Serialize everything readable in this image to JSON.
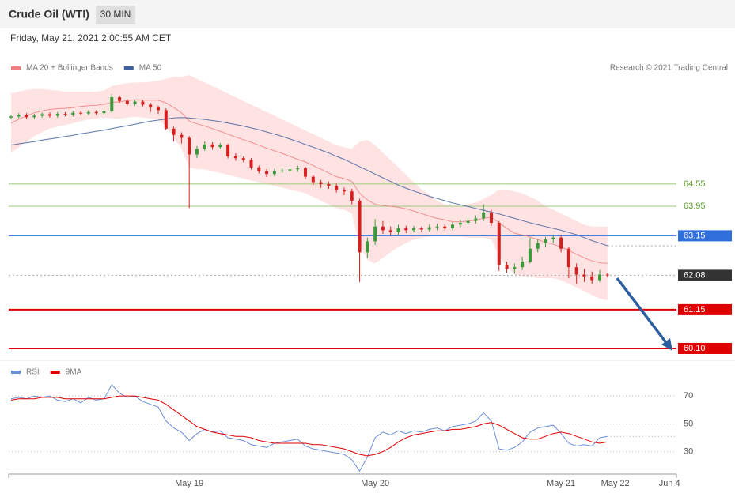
{
  "header": {
    "title": "Crude Oil (WTI)",
    "timeframe": "30 MIN",
    "datetime": "Friday, May 21, 2021 2:00:55 AM CET",
    "copyright": "Research © 2021 Trading Central"
  },
  "chart_data": [
    {
      "type": "candlestick",
      "ylim": [
        59.8,
        67.5
      ],
      "candles": {
        "open": [
          66.35,
          66.38,
          66.42,
          66.36,
          66.4,
          66.44,
          66.4,
          66.45,
          66.43,
          66.48,
          66.46,
          66.5,
          66.47,
          66.52,
          66.9,
          66.8,
          66.72,
          66.78,
          66.7,
          66.62,
          66.55,
          66.05,
          65.88,
          65.8,
          65.35,
          65.5,
          65.62,
          65.55,
          65.6,
          65.3,
          65.25,
          65.2,
          65.0,
          64.9,
          64.82,
          64.9,
          64.92,
          64.95,
          64.98,
          64.75,
          64.6,
          64.55,
          64.5,
          64.4,
          64.35,
          64.1,
          62.7,
          63.0,
          63.4,
          63.3,
          63.25,
          63.35,
          63.3,
          63.35,
          63.32,
          63.38,
          63.4,
          63.35,
          63.45,
          63.5,
          63.55,
          63.62,
          63.78,
          63.5,
          62.35,
          62.25,
          62.3,
          62.45,
          62.8,
          62.95,
          63.05,
          63.1,
          62.8,
          62.3,
          62.1,
          62.05,
          61.95,
          62.1,
          null,
          null,
          null,
          null,
          null,
          null,
          null,
          null
        ],
        "high": [
          66.43,
          66.47,
          66.47,
          66.45,
          66.49,
          66.49,
          66.5,
          66.5,
          66.53,
          66.53,
          66.55,
          66.55,
          66.57,
          66.98,
          66.95,
          66.85,
          66.83,
          66.83,
          66.75,
          66.67,
          66.6,
          66.1,
          65.95,
          65.85,
          65.58,
          65.7,
          65.68,
          65.66,
          65.64,
          65.38,
          65.3,
          65.25,
          65.05,
          64.96,
          64.96,
          64.98,
          65.0,
          65.05,
          65.02,
          64.8,
          64.66,
          64.62,
          64.56,
          64.46,
          64.42,
          64.15,
          63.1,
          63.6,
          63.55,
          63.4,
          63.45,
          63.42,
          63.42,
          63.4,
          63.45,
          63.48,
          63.47,
          63.52,
          63.58,
          63.62,
          63.7,
          64.0,
          63.85,
          63.55,
          62.45,
          62.4,
          62.58,
          63.1,
          63.05,
          63.12,
          63.15,
          63.15,
          62.85,
          62.4,
          62.25,
          62.18,
          62.22,
          62.14,
          null,
          null,
          null,
          null,
          null,
          null,
          null,
          null
        ],
        "low": [
          66.3,
          66.33,
          66.31,
          66.31,
          66.35,
          66.35,
          66.35,
          66.38,
          66.38,
          66.41,
          66.41,
          66.42,
          66.42,
          66.47,
          66.75,
          66.67,
          66.67,
          66.65,
          66.5,
          66.45,
          66.0,
          65.7,
          65.65,
          63.9,
          65.25,
          65.45,
          65.48,
          65.5,
          65.24,
          65.18,
          65.14,
          64.94,
          64.84,
          64.74,
          64.76,
          64.85,
          64.87,
          64.88,
          64.68,
          64.52,
          64.45,
          64.42,
          64.32,
          64.25,
          64.0,
          61.9,
          62.55,
          62.9,
          63.2,
          63.15,
          63.18,
          63.22,
          63.24,
          63.25,
          63.26,
          63.3,
          63.28,
          63.3,
          63.38,
          63.44,
          63.48,
          63.55,
          63.42,
          62.2,
          62.15,
          62.12,
          62.22,
          62.4,
          62.7,
          62.85,
          62.95,
          62.7,
          62.0,
          61.85,
          61.9,
          61.85,
          61.9,
          62.02,
          null,
          null,
          null,
          null,
          null,
          null,
          null,
          null
        ],
        "close": [
          66.38,
          66.42,
          66.36,
          66.4,
          66.44,
          66.4,
          66.45,
          66.43,
          66.48,
          66.46,
          66.5,
          66.47,
          66.52,
          66.9,
          66.8,
          66.72,
          66.78,
          66.7,
          66.62,
          66.55,
          66.05,
          65.88,
          65.8,
          65.35,
          65.5,
          65.62,
          65.55,
          65.6,
          65.3,
          65.25,
          65.2,
          65.0,
          64.9,
          64.82,
          64.9,
          64.92,
          64.95,
          64.98,
          64.75,
          64.6,
          64.55,
          64.5,
          64.4,
          64.35,
          64.1,
          62.7,
          63.0,
          63.4,
          63.3,
          63.25,
          63.35,
          63.3,
          63.35,
          63.32,
          63.38,
          63.4,
          63.35,
          63.45,
          63.5,
          63.55,
          63.62,
          63.78,
          63.5,
          62.35,
          62.25,
          62.3,
          62.45,
          62.8,
          62.95,
          63.05,
          63.1,
          62.8,
          62.3,
          62.1,
          62.05,
          61.95,
          62.1,
          62.08,
          null,
          null,
          null,
          null,
          null,
          null,
          null,
          null
        ],
        "up_color": "#3a9a3a",
        "down_color": "#d62020"
      },
      "bollinger": {
        "color": "#ffd9d9",
        "upper": [
          67.0,
          67.05,
          67.1,
          67.12,
          67.12,
          67.1,
          67.08,
          67.05,
          67.05,
          67.05,
          67.05,
          67.05,
          67.08,
          67.2,
          67.25,
          67.28,
          67.3,
          67.3,
          67.32,
          67.35,
          67.4,
          67.45,
          67.45,
          67.5,
          67.4,
          67.3,
          67.2,
          67.1,
          67.0,
          66.9,
          66.8,
          66.7,
          66.6,
          66.5,
          66.4,
          66.3,
          66.2,
          66.1,
          66.0,
          65.9,
          65.8,
          65.7,
          65.6,
          65.55,
          65.5,
          65.7,
          65.75,
          65.6,
          65.4,
          65.2,
          65.0,
          64.8,
          64.6,
          64.4,
          64.25,
          64.1,
          64.0,
          63.95,
          63.95,
          64.0,
          64.05,
          64.15,
          64.25,
          64.4,
          64.4,
          64.35,
          64.3,
          64.2,
          64.1,
          63.95,
          63.85,
          63.75,
          63.65,
          63.55,
          63.45,
          63.4,
          63.4,
          63.4,
          null,
          null,
          null,
          null,
          null,
          null,
          null,
          null
        ],
        "lower": [
          65.4,
          65.55,
          65.7,
          65.85,
          65.95,
          66.05,
          66.1,
          66.15,
          66.2,
          66.25,
          66.3,
          66.32,
          66.35,
          66.33,
          66.32,
          66.35,
          66.37,
          66.35,
          66.33,
          66.3,
          66.1,
          65.8,
          65.5,
          65.0,
          64.95,
          64.95,
          64.9,
          64.85,
          64.8,
          64.75,
          64.7,
          64.65,
          64.6,
          64.55,
          64.5,
          64.45,
          64.4,
          64.35,
          64.3,
          64.2,
          64.1,
          64.0,
          63.9,
          63.85,
          63.75,
          62.9,
          62.5,
          62.4,
          62.55,
          62.7,
          62.85,
          62.95,
          63.05,
          63.1,
          63.12,
          63.15,
          63.15,
          63.12,
          63.12,
          63.1,
          63.1,
          63.1,
          63.05,
          62.6,
          62.3,
          62.1,
          62.05,
          62.05,
          62.0,
          62.0,
          62.0,
          61.95,
          61.85,
          61.75,
          61.65,
          61.55,
          61.45,
          61.4,
          null,
          null,
          null,
          null,
          null,
          null,
          null,
          null
        ]
      },
      "series": [
        {
          "name": "MA 20 + Bollinger Bands",
          "color": "#f08080",
          "values": [
            66.2,
            66.3,
            66.4,
            66.48,
            66.53,
            66.57,
            66.59,
            66.6,
            66.62,
            66.65,
            66.67,
            66.68,
            66.71,
            66.76,
            66.78,
            66.81,
            66.83,
            66.82,
            66.82,
            66.82,
            66.75,
            66.62,
            66.48,
            66.25,
            66.18,
            66.12,
            66.05,
            65.98,
            65.9,
            65.82,
            65.75,
            65.68,
            65.6,
            65.52,
            65.45,
            65.38,
            65.3,
            65.22,
            65.15,
            65.05,
            64.95,
            64.85,
            64.75,
            64.7,
            64.62,
            64.3,
            64.12,
            64.0,
            63.97,
            63.95,
            63.92,
            63.88,
            63.82,
            63.75,
            63.68,
            63.62,
            63.58,
            63.53,
            63.53,
            63.55,
            63.57,
            63.62,
            63.65,
            63.5,
            63.35,
            63.22,
            63.17,
            63.12,
            63.05,
            62.97,
            62.92,
            62.85,
            62.75,
            62.65,
            62.55,
            62.47,
            62.42,
            62.4,
            null,
            null,
            null,
            null,
            null,
            null,
            null,
            null
          ]
        },
        {
          "name": "MA 50",
          "color": "#3f5f9f",
          "values": [
            65.6,
            65.64,
            65.67,
            65.7,
            65.74,
            65.77,
            65.8,
            65.84,
            65.87,
            65.91,
            65.94,
            65.98,
            66.01,
            66.05,
            66.09,
            66.13,
            66.17,
            66.21,
            66.25,
            66.28,
            66.31,
            66.34,
            66.35,
            66.34,
            66.32,
            66.3,
            66.27,
            66.24,
            66.2,
            66.16,
            66.12,
            66.07,
            66.02,
            65.96,
            65.9,
            65.84,
            65.77,
            65.7,
            65.62,
            65.55,
            65.47,
            65.39,
            65.3,
            65.22,
            65.12,
            65.02,
            64.92,
            64.82,
            64.72,
            64.62,
            64.52,
            64.44,
            64.36,
            64.29,
            64.22,
            64.16,
            64.1,
            64.04,
            63.99,
            63.94,
            63.89,
            63.84,
            63.79,
            63.74,
            63.68,
            63.62,
            63.56,
            63.5,
            63.45,
            63.4,
            63.35,
            63.3,
            63.24,
            63.18,
            63.1,
            63.02,
            62.95,
            62.88,
            null,
            null,
            null,
            null,
            null,
            null,
            null,
            null
          ]
        }
      ],
      "levels": [
        {
          "value": 64.55,
          "color": "#9bc97a",
          "width": 1,
          "label_style": "text"
        },
        {
          "value": 63.95,
          "color": "#9bc97a",
          "width": 1,
          "label_style": "text"
        },
        {
          "value": 63.15,
          "color": "#2f6fdc",
          "width": 1,
          "label_style": "box"
        },
        {
          "value": 62.08,
          "color": "#333333",
          "width": 1,
          "label_style": "box",
          "line_style": "dotted"
        },
        {
          "value": 61.15,
          "color": "#e00000",
          "width": 2,
          "label_style": "box"
        },
        {
          "value": 60.1,
          "label": "60.10",
          "color": "#e00000",
          "width": 2,
          "label_style": "box"
        }
      ]
    },
    {
      "type": "line",
      "ylim": [
        15,
        82
      ],
      "yticks": [
        70,
        50,
        30
      ],
      "grid": true,
      "categories": [
        null,
        null,
        null,
        null,
        null,
        null,
        null,
        null,
        null,
        null,
        null,
        null,
        null,
        null,
        null,
        null,
        null,
        null,
        null,
        null,
        null,
        null,
        null,
        "May 19",
        null,
        null,
        null,
        null,
        null,
        null,
        null,
        null,
        null,
        null,
        null,
        null,
        null,
        null,
        null,
        null,
        null,
        null,
        null,
        null,
        null,
        null,
        null,
        "May 20",
        null,
        null,
        null,
        null,
        null,
        null,
        null,
        null,
        null,
        null,
        null,
        null,
        null,
        null,
        null,
        null,
        null,
        null,
        null,
        null,
        null,
        null,
        null,
        "May 21",
        null,
        null,
        null,
        null,
        null,
        null,
        "May 22",
        null,
        null,
        null,
        null,
        null,
        null,
        "Jun 4"
      ],
      "series": [
        {
          "name": "RSI",
          "color": "#6a8fd8",
          "values": [
            68,
            69,
            68,
            70,
            69,
            70,
            67,
            66,
            68,
            65,
            69,
            67,
            68,
            78,
            72,
            69,
            70,
            66,
            64,
            62,
            52,
            47,
            44,
            38,
            43,
            46,
            44,
            45,
            40,
            39,
            38,
            35,
            34,
            33,
            36,
            37,
            38,
            39,
            34,
            32,
            31,
            30,
            29,
            28,
            24,
            16,
            26,
            40,
            44,
            42,
            45,
            43,
            45,
            44,
            46,
            47,
            45,
            48,
            49,
            50,
            52,
            58,
            52,
            32,
            31,
            33,
            37,
            44,
            47,
            48,
            49,
            43,
            36,
            34,
            35,
            34,
            40,
            41,
            null,
            null,
            null,
            null,
            null,
            null,
            null,
            null
          ]
        },
        {
          "name": "9MA",
          "color": "#e00000",
          "values": [
            67,
            68,
            68,
            68,
            69,
            69,
            69,
            68,
            68,
            68,
            68,
            68,
            68,
            69,
            70,
            70,
            70,
            69,
            68,
            67,
            64,
            60,
            56,
            52,
            48,
            46,
            44,
            43,
            42,
            41,
            41,
            40,
            38,
            37,
            36,
            36,
            36,
            36,
            36,
            35,
            35,
            34,
            33,
            32,
            30,
            28,
            27,
            28,
            30,
            33,
            37,
            40,
            42,
            43,
            44,
            45,
            45,
            46,
            46,
            47,
            48,
            50,
            51,
            49,
            46,
            43,
            40,
            39,
            39,
            41,
            43,
            44,
            43,
            41,
            39,
            37,
            36,
            37,
            null,
            null,
            null,
            null,
            null,
            null,
            null,
            null
          ]
        }
      ]
    }
  ]
}
